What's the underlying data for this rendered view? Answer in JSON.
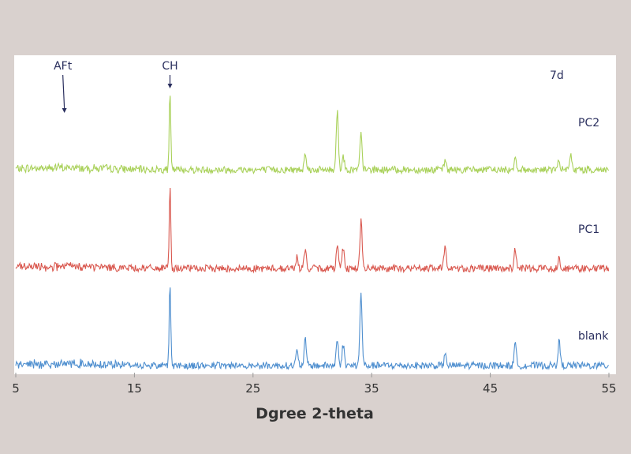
{
  "chart_data": {
    "type": "line",
    "title": "",
    "xlabel": "Dgree 2-theta",
    "ylabel": "",
    "xlim": [
      5,
      55
    ],
    "xticks": [
      "5",
      "15",
      "25",
      "35",
      "45",
      "55"
    ],
    "grid": false,
    "legend": "series labels printed at right end of each trace",
    "annotations": {
      "age": "7d",
      "arrows": [
        {
          "label": "AFt",
          "x": 9.1
        },
        {
          "label": "CH",
          "x": 18.0
        }
      ]
    },
    "series": [
      {
        "name": "PC2",
        "color": "#a9d15a",
        "peaks": [
          [
            18.0,
            100
          ],
          [
            29.4,
            24
          ],
          [
            32.1,
            78
          ],
          [
            32.6,
            18
          ],
          [
            34.1,
            46
          ],
          [
            41.2,
            12
          ],
          [
            47.1,
            18
          ],
          [
            50.8,
            12
          ],
          [
            51.8,
            18
          ]
        ]
      },
      {
        "name": "PC1",
        "color": "#d9584f",
        "peaks": [
          [
            18.0,
            100
          ],
          [
            28.7,
            14
          ],
          [
            29.4,
            22
          ],
          [
            32.1,
            30
          ],
          [
            32.6,
            26
          ],
          [
            34.1,
            58
          ],
          [
            41.2,
            30
          ],
          [
            47.1,
            24
          ],
          [
            50.8,
            14
          ]
        ]
      },
      {
        "name": "blank",
        "color": "#4f8fcf",
        "peaks": [
          [
            18.0,
            100
          ],
          [
            28.7,
            16
          ],
          [
            29.4,
            30
          ],
          [
            32.1,
            30
          ],
          [
            32.6,
            25
          ],
          [
            34.1,
            85
          ],
          [
            41.2,
            12
          ],
          [
            47.1,
            25
          ],
          [
            50.8,
            28
          ]
        ]
      }
    ]
  }
}
